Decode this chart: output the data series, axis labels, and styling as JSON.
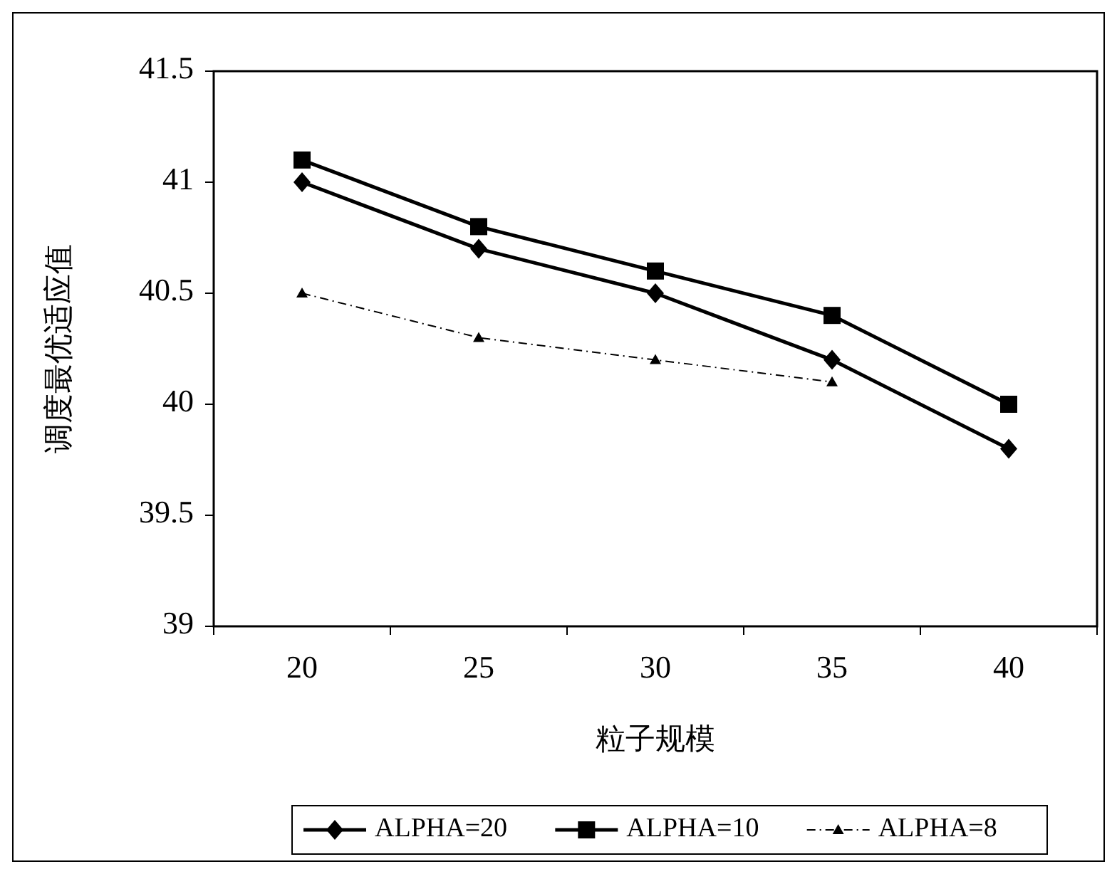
{
  "chart_data": {
    "type": "line",
    "xlabel": "粒子规模",
    "ylabel": "调度最优适应值",
    "categories": [
      "20",
      "25",
      "30",
      "35",
      "40"
    ],
    "ylim": [
      39,
      41.5
    ],
    "yticks": [
      39,
      39.5,
      40,
      40.5,
      41,
      41.5
    ],
    "grid": false,
    "legend": "bottom",
    "series": [
      {
        "name": "ALPHA=20",
        "color": "#000000",
        "values": [
          41.0,
          40.7,
          40.5,
          40.2,
          39.8
        ],
        "marker": "diamond",
        "line_style": "solid"
      },
      {
        "name": "ALPHA=10",
        "color": "#000000",
        "values": [
          41.1,
          40.8,
          40.6,
          40.4,
          40.0
        ],
        "marker": "square",
        "line_style": "solid"
      },
      {
        "name": "ALPHA=8",
        "color": "#000000",
        "values": [
          40.5,
          40.3,
          40.2,
          40.1,
          null
        ],
        "marker": "triangle",
        "line_style": "dashed"
      }
    ]
  }
}
